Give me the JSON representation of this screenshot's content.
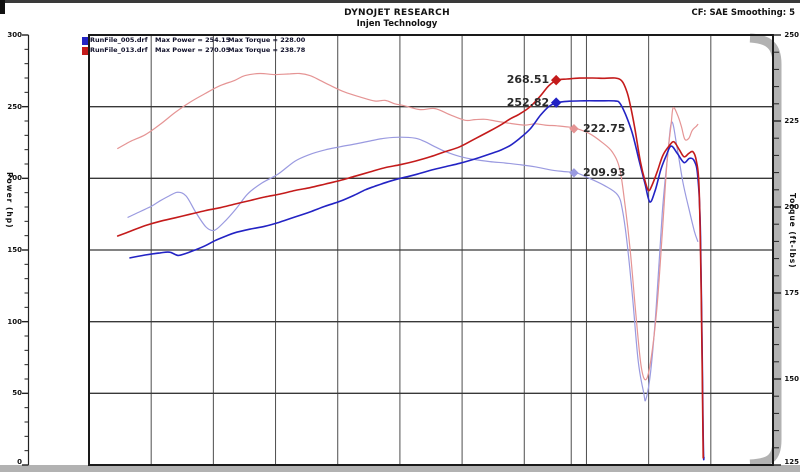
{
  "header": {
    "title": "DYNOJET RESEARCH",
    "subtitle": "Injen Technology",
    "correction_info": "CF: SAE  Smoothing: 5"
  },
  "legend": {
    "rows": [
      {
        "file": "RunFile_005.drf",
        "max_power": "Max Power = 254.15",
        "max_torque": "Max Torque = 228.00",
        "color": "#2323c4"
      },
      {
        "file": "RunFile_013.drf",
        "max_power": "Max Power = 270.05",
        "max_torque": "Max Torque = 238.78",
        "color": "#c41b1b"
      }
    ]
  },
  "chart_data": {
    "type": "line",
    "title": "DYNOJET RESEARCH",
    "subtitle": "Injen Technology",
    "correction": "CF: SAE",
    "smoothing": "5",
    "ylabel_left": "Power (hp)",
    "ylabel_right": "Torque (ft-lbs)",
    "x_axis": {
      "note": "RPM axis labels cropped out of view",
      "divisions": 11,
      "x_units": "fraction_of_plot_width"
    },
    "y_left": {
      "min": 0,
      "max": 300,
      "major_ticks": [
        300,
        250,
        200,
        150,
        100,
        50,
        0
      ],
      "minor_step": 10,
      "tick_labels": [
        "300",
        "250",
        "200",
        "150",
        "100",
        "50",
        "0"
      ]
    },
    "y_right": {
      "min": 125,
      "max": 250,
      "major_ticks": [
        250,
        225,
        200,
        175,
        150,
        125
      ],
      "minor_step": 5,
      "tick_labels": [
        "250",
        "225",
        "200",
        "175",
        "150",
        "125"
      ]
    },
    "grid": {
      "vertical_color": "#4d4d4d",
      "horizontal_color": "#383838",
      "border_color": "#1a1a1a",
      "frame_color": "#b2b2b2"
    },
    "cursor_x": 0.705,
    "series": [
      {
        "name": "RunFile_005.drf Torque",
        "axis": "right",
        "color": "#9a9ae0",
        "width": 1.2,
        "points": [
          [
            0.057,
            197
          ],
          [
            0.075,
            198.7
          ],
          [
            0.092,
            200.3
          ],
          [
            0.104,
            201.8
          ],
          [
            0.118,
            203.3
          ],
          [
            0.13,
            204.3
          ],
          [
            0.142,
            203.2
          ],
          [
            0.156,
            198.5
          ],
          [
            0.171,
            194.2
          ],
          [
            0.183,
            193.2
          ],
          [
            0.197,
            195.5
          ],
          [
            0.215,
            199.5
          ],
          [
            0.232,
            203.8
          ],
          [
            0.253,
            207
          ],
          [
            0.276,
            209.5
          ],
          [
            0.301,
            213.3
          ],
          [
            0.323,
            215.3
          ],
          [
            0.345,
            216.6
          ],
          [
            0.367,
            217.5
          ],
          [
            0.389,
            218.3
          ],
          [
            0.411,
            219.2
          ],
          [
            0.433,
            220
          ],
          [
            0.455,
            220.3
          ],
          [
            0.477,
            220
          ],
          [
            0.491,
            219
          ],
          [
            0.506,
            217.5
          ],
          [
            0.52,
            216.2
          ],
          [
            0.542,
            214.7
          ],
          [
            0.564,
            213.8
          ],
          [
            0.586,
            213.2
          ],
          [
            0.608,
            212.8
          ],
          [
            0.63,
            212.3
          ],
          [
            0.652,
            211.7
          ],
          [
            0.674,
            210.8
          ],
          [
            0.695,
            210.3
          ],
          [
            0.713,
            209.9
          ],
          [
            0.732,
            208.3
          ],
          [
            0.754,
            206.2
          ],
          [
            0.773,
            203.5
          ],
          [
            0.78,
            199
          ],
          [
            0.787,
            189
          ],
          [
            0.795,
            173
          ],
          [
            0.803,
            155
          ],
          [
            0.811,
            146
          ],
          [
            0.814,
            144
          ],
          [
            0.821,
            152
          ],
          [
            0.829,
            170
          ],
          [
            0.838,
            198
          ],
          [
            0.846,
            215
          ],
          [
            0.852,
            224.7
          ],
          [
            0.86,
            217
          ],
          [
            0.868,
            207.5
          ],
          [
            0.877,
            199.5
          ],
          [
            0.885,
            193
          ],
          [
            0.89,
            190
          ]
        ]
      },
      {
        "name": "RunFile_013.drf Torque",
        "axis": "right",
        "color": "#e59494",
        "width": 1.2,
        "points": [
          [
            0.042,
            217
          ],
          [
            0.06,
            219
          ],
          [
            0.082,
            221
          ],
          [
            0.104,
            224
          ],
          [
            0.126,
            227.5
          ],
          [
            0.148,
            230.5
          ],
          [
            0.17,
            233
          ],
          [
            0.192,
            235.3
          ],
          [
            0.213,
            236.8
          ],
          [
            0.228,
            238.2
          ],
          [
            0.25,
            238.8
          ],
          [
            0.272,
            238.5
          ],
          [
            0.294,
            238.7
          ],
          [
            0.308,
            238.8
          ],
          [
            0.323,
            238.2
          ],
          [
            0.338,
            236.8
          ],
          [
            0.352,
            235.4
          ],
          [
            0.374,
            233.4
          ],
          [
            0.396,
            232
          ],
          [
            0.418,
            230.8
          ],
          [
            0.433,
            231
          ],
          [
            0.447,
            230
          ],
          [
            0.462,
            229.4
          ],
          [
            0.484,
            228.3
          ],
          [
            0.506,
            228.6
          ],
          [
            0.528,
            226.8
          ],
          [
            0.55,
            225.2
          ],
          [
            0.564,
            225.4
          ],
          [
            0.579,
            225.5
          ],
          [
            0.594,
            225
          ],
          [
            0.616,
            224.3
          ],
          [
            0.637,
            223.8
          ],
          [
            0.652,
            224.2
          ],
          [
            0.667,
            223.8
          ],
          [
            0.684,
            223.6
          ],
          [
            0.703,
            223.2
          ],
          [
            0.713,
            222.8
          ],
          [
            0.732,
            221.3
          ],
          [
            0.75,
            218.8
          ],
          [
            0.765,
            216
          ],
          [
            0.776,
            211
          ],
          [
            0.784,
            200
          ],
          [
            0.791,
            188
          ],
          [
            0.799,
            170
          ],
          [
            0.807,
            154
          ],
          [
            0.814,
            149.8
          ],
          [
            0.821,
            155
          ],
          [
            0.83,
            170
          ],
          [
            0.838,
            192
          ],
          [
            0.845,
            213
          ],
          [
            0.851,
            224
          ],
          [
            0.854,
            228.8
          ],
          [
            0.86,
            227
          ],
          [
            0.866,
            223.5
          ],
          [
            0.871,
            219.7
          ],
          [
            0.877,
            220
          ],
          [
            0.882,
            222.3
          ],
          [
            0.888,
            223.5
          ],
          [
            0.89,
            224
          ]
        ]
      },
      {
        "name": "RunFile_005.drf Power",
        "axis": "left",
        "color": "#2323c4",
        "width": 1.6,
        "points": [
          [
            0.06,
            144.5
          ],
          [
            0.082,
            146.5
          ],
          [
            0.104,
            148
          ],
          [
            0.118,
            148.5
          ],
          [
            0.13,
            146.2
          ],
          [
            0.141,
            147.5
          ],
          [
            0.155,
            150
          ],
          [
            0.17,
            153
          ],
          [
            0.184,
            156.5
          ],
          [
            0.199,
            159.5
          ],
          [
            0.213,
            162
          ],
          [
            0.235,
            164.5
          ],
          [
            0.257,
            166.5
          ],
          [
            0.279,
            169.5
          ],
          [
            0.301,
            173
          ],
          [
            0.323,
            176.5
          ],
          [
            0.345,
            180.5
          ],
          [
            0.367,
            184
          ],
          [
            0.389,
            188.5
          ],
          [
            0.404,
            192
          ],
          [
            0.418,
            194.5
          ],
          [
            0.44,
            198
          ],
          [
            0.455,
            200
          ],
          [
            0.477,
            202.5
          ],
          [
            0.499,
            205.5
          ],
          [
            0.52,
            208
          ],
          [
            0.542,
            210.5
          ],
          [
            0.564,
            213.5
          ],
          [
            0.586,
            217
          ],
          [
            0.601,
            219.5
          ],
          [
            0.616,
            223
          ],
          [
            0.63,
            228
          ],
          [
            0.645,
            234.5
          ],
          [
            0.66,
            244
          ],
          [
            0.672,
            250
          ],
          [
            0.684,
            252.8
          ],
          [
            0.702,
            253.8
          ],
          [
            0.724,
            254.1
          ],
          [
            0.747,
            254.1
          ],
          [
            0.769,
            254
          ],
          [
            0.776,
            252.5
          ],
          [
            0.784,
            245
          ],
          [
            0.794,
            232
          ],
          [
            0.804,
            213
          ],
          [
            0.813,
            196
          ],
          [
            0.82,
            183.5
          ],
          [
            0.828,
            192
          ],
          [
            0.836,
            206
          ],
          [
            0.844,
            216
          ],
          [
            0.851,
            222.5
          ],
          [
            0.86,
            217.5
          ],
          [
            0.87,
            211
          ],
          [
            0.878,
            214
          ],
          [
            0.885,
            212
          ],
          [
            0.89,
            201
          ],
          [
            0.894,
            160
          ],
          [
            0.898,
            20
          ],
          [
            0.899,
            5
          ]
        ]
      },
      {
        "name": "RunFile_013.drf Power",
        "axis": "left",
        "color": "#c41b1b",
        "width": 1.6,
        "points": [
          [
            0.042,
            159.8
          ],
          [
            0.06,
            163
          ],
          [
            0.082,
            167
          ],
          [
            0.104,
            170
          ],
          [
            0.126,
            172.5
          ],
          [
            0.148,
            175
          ],
          [
            0.17,
            177.5
          ],
          [
            0.192,
            179.5
          ],
          [
            0.213,
            182
          ],
          [
            0.235,
            184.5
          ],
          [
            0.257,
            187
          ],
          [
            0.279,
            189
          ],
          [
            0.301,
            191.5
          ],
          [
            0.323,
            193.5
          ],
          [
            0.345,
            196
          ],
          [
            0.367,
            198.5
          ],
          [
            0.389,
            201.5
          ],
          [
            0.411,
            204.5
          ],
          [
            0.433,
            207.5
          ],
          [
            0.455,
            209.5
          ],
          [
            0.477,
            212
          ],
          [
            0.499,
            215
          ],
          [
            0.52,
            218.5
          ],
          [
            0.542,
            222
          ],
          [
            0.564,
            227.5
          ],
          [
            0.586,
            233
          ],
          [
            0.601,
            237
          ],
          [
            0.616,
            241.5
          ],
          [
            0.63,
            245
          ],
          [
            0.645,
            250
          ],
          [
            0.66,
            257.5
          ],
          [
            0.672,
            264.5
          ],
          [
            0.684,
            268.5
          ],
          [
            0.699,
            269.3
          ],
          [
            0.717,
            269.9
          ],
          [
            0.736,
            270
          ],
          [
            0.754,
            269.8
          ],
          [
            0.769,
            270
          ],
          [
            0.779,
            268
          ],
          [
            0.786,
            261
          ],
          [
            0.791,
            252
          ],
          [
            0.798,
            235
          ],
          [
            0.806,
            212
          ],
          [
            0.813,
            198
          ],
          [
            0.818,
            191.5
          ],
          [
            0.823,
            195
          ],
          [
            0.831,
            205
          ],
          [
            0.839,
            216
          ],
          [
            0.848,
            222.5
          ],
          [
            0.855,
            225.5
          ],
          [
            0.863,
            220
          ],
          [
            0.87,
            215
          ],
          [
            0.877,
            217.5
          ],
          [
            0.883,
            218.5
          ],
          [
            0.888,
            212
          ],
          [
            0.892,
            193
          ],
          [
            0.895,
            120
          ],
          [
            0.898,
            5
          ]
        ]
      }
    ],
    "markers": [
      {
        "label": "268.51",
        "value": 268.51,
        "axis": "left",
        "x": 0.683,
        "color": "#c41b1b",
        "label_side": "left"
      },
      {
        "label": "252.82",
        "value": 252.82,
        "axis": "left",
        "x": 0.683,
        "color": "#2323c4",
        "label_side": "left"
      },
      {
        "label": "222.75",
        "value": 222.75,
        "axis": "right",
        "x": 0.709,
        "color": "#e59494",
        "label_side": "right"
      },
      {
        "label": "209.93",
        "value": 209.93,
        "axis": "right",
        "x": 0.709,
        "color": "#9a9ae0",
        "label_side": "right"
      }
    ]
  }
}
